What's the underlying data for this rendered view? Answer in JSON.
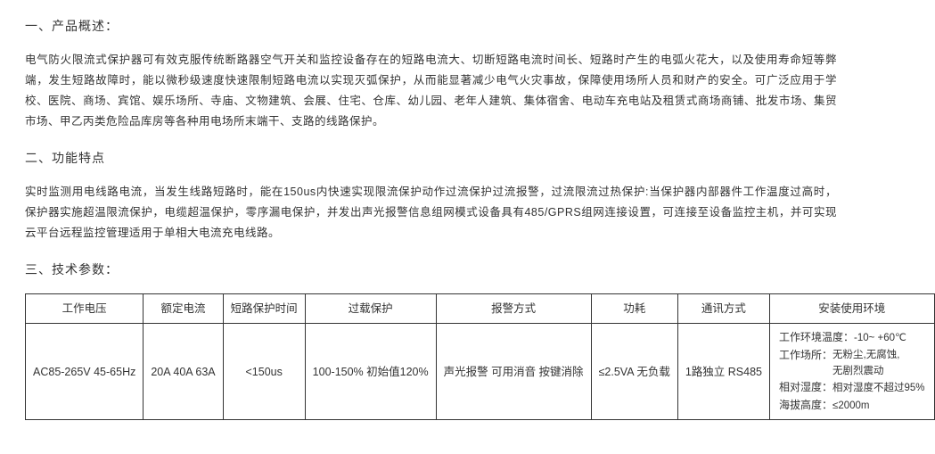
{
  "sections": {
    "s1": {
      "title": "一、产品概述：",
      "body": "电气防火限流式保护器可有效克服传统断路器空气开关和监控设备存在的短路电流大、切断短路电流时间长、短路时产生的电弧火花大，以及使用寿命短等弊端，发生短路故障时，能以微秒级速度快速限制短路电流以实现灭弧保护，从而能显著减少电气火灾事故，保障使用场所人员和财产的安全。可广泛应用于学校、医院、商场、宾馆、娱乐场所、寺庙、文物建筑、会展、住宅、仓库、幼儿园、老年人建筑、集体宿舍、电动车充电站及租赁式商场商铺、批发市场、集贸市场、甲乙丙类危险品库房等各种用电场所末端干、支路的线路保护。"
    },
    "s2": {
      "title": "二、功能特点",
      "body": "实时监测用电线路电流，当发生线路短路时，能在150us内快速实现限流保护动作过流保护过流报警，过流限流过热保护:当保护器内部器件工作温度过高时，保护器实施超温限流保护，电缆超温保护，零序漏电保护，并发出声光报警信息组网模式设备具有485/GPRS组网连接设置，可连接至设备监控主机，并可实现云平台远程监控管理适用于单相大电流充电线路。"
    },
    "s3": {
      "title": "三、技术参数："
    }
  },
  "table": {
    "headers": {
      "h0": "工作电压",
      "h1": "额定电流",
      "h2": "短路保护时间",
      "h3": "过载保护",
      "h4": "报警方式",
      "h5": "功耗",
      "h6": "通讯方式",
      "h7": "安装使用环境"
    },
    "row": {
      "voltage": "AC85-265V\n45-65Hz",
      "current": "20A  40A\n63A",
      "short_time": "<150us",
      "overload": "100-150%\n初始值120%",
      "alarm": "声光报警\n可用消音\n按键消除",
      "power": "≤2.5VA\n无负载",
      "comm": "1路独立\nRS485",
      "env": {
        "temp_label": "工作环境温度：",
        "temp_value": "-10~ +60℃",
        "place_label": "工作场所：",
        "place_value": "无粉尘,无腐蚀,\n无剧烈震动",
        "humidity_label": "相对湿度：",
        "humidity_value": "相对湿度不超过95%",
        "altitude_label": "海拔高度：",
        "altitude_value": "≤2000m"
      }
    },
    "col_widths": [
      "95",
      "90",
      "95",
      "95",
      "90",
      "80",
      "80",
      "240"
    ]
  },
  "colors": {
    "text": "#333333",
    "border": "#333333",
    "background": "#ffffff"
  }
}
